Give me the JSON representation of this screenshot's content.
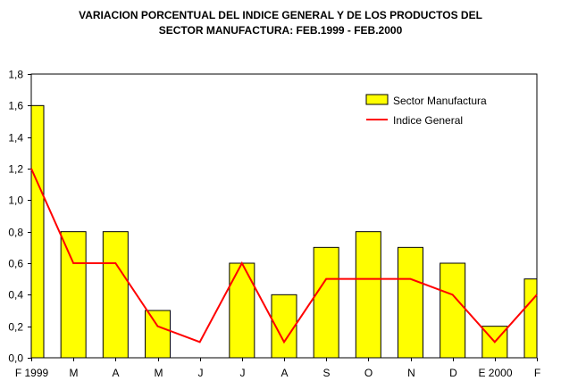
{
  "chart_data": {
    "type": "bar",
    "title_line1": "VARIACION PORCENTUAL DEL INDICE GENERAL Y DE LOS PRODUCTOS DEL",
    "title_line2": "SECTOR MANUFACTURA: FEB.1999 - FEB.2000",
    "xlabel": "",
    "ylabel": "",
    "categories": [
      "F 1999",
      "M",
      "A",
      "M",
      "J",
      "J",
      "A",
      "S",
      "O",
      "N",
      "D",
      "E 2000",
      "F"
    ],
    "ylim": [
      0,
      1.8
    ],
    "yticks": [
      "0,0",
      "0,2",
      "0,4",
      "0,6",
      "0,8",
      "1,0",
      "1,2",
      "1,4",
      "1,6",
      "1,8"
    ],
    "grid": false,
    "legend_position": "top-right",
    "series": [
      {
        "name": "Sector Manufactura",
        "kind": "bar",
        "color": "#ffff00",
        "values": [
          1.6,
          0.8,
          0.8,
          0.3,
          0.0,
          0.6,
          0.4,
          0.7,
          0.8,
          0.7,
          0.6,
          0.2,
          0.5
        ]
      },
      {
        "name": "Indice General",
        "kind": "line",
        "color": "#ff0000",
        "values": [
          1.2,
          0.6,
          0.6,
          0.2,
          0.1,
          0.6,
          0.1,
          0.5,
          0.5,
          0.5,
          0.4,
          0.1,
          0.4
        ]
      }
    ]
  }
}
